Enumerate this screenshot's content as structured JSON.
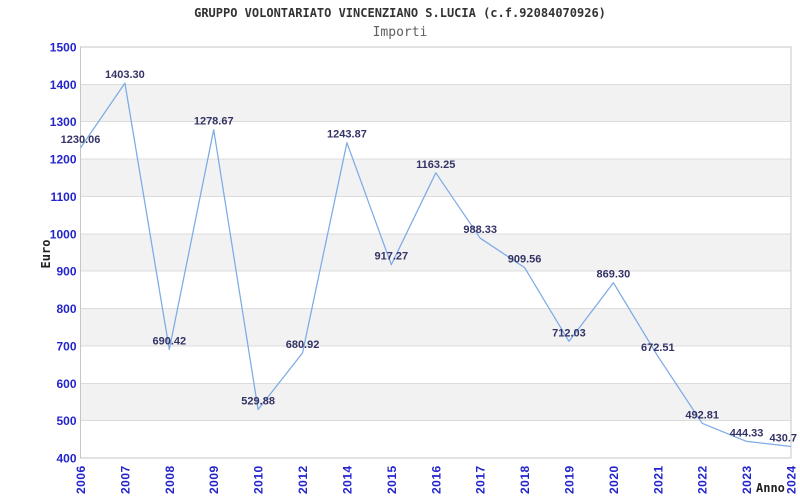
{
  "header": {
    "title": "GRUPPO VOLONTARIATO VINCENZIANO S.LUCIA (c.f.92084070926)",
    "subtitle": "Importi"
  },
  "chart_data": {
    "type": "line",
    "title": "GRUPPO VOLONTARIATO VINCENZIANO S.LUCIA (c.f.92084070926)",
    "subtitle": "Importi",
    "xlabel": "Anno",
    "ylabel": "Euro",
    "categories": [
      "2006",
      "2007",
      "2008",
      "2009",
      "2010",
      "2012",
      "2014",
      "2015",
      "2016",
      "2017",
      "2018",
      "2019",
      "2020",
      "2021",
      "2022",
      "2023",
      "2024"
    ],
    "values": [
      1230.06,
      1403.3,
      690.42,
      1278.67,
      529.88,
      680.92,
      1243.87,
      917.27,
      1163.25,
      988.33,
      909.56,
      712.03,
      869.3,
      672.51,
      492.81,
      444.33,
      430.7
    ],
    "point_labels": [
      "1230.06",
      "1403.30",
      "690.42",
      "1278.67",
      "529.88",
      "680.92",
      "1243.87",
      "917.27",
      "1163.25",
      "988.33",
      "909.56",
      "712.03",
      "869.30",
      "672.51",
      "492.81",
      "444.33",
      "430.7"
    ],
    "ylim": [
      400,
      1500
    ],
    "ytick_step": 100,
    "ytick_labels": [
      "400",
      "500",
      "600",
      "700",
      "800",
      "900",
      "1000",
      "1100",
      "1200",
      "1300",
      "1400",
      "1500"
    ],
    "grid": "horizontal",
    "alternating_bands": true,
    "legend": null,
    "colors": {
      "line": "#7cabe6",
      "tick_label": "#2424cc",
      "data_label": "#333366",
      "band": "#f2f2f2",
      "gridline": "#dcdcdc",
      "border": "#c6c6c6",
      "title": "#333333",
      "subtitle": "#606060",
      "axis_title": "#222222"
    }
  }
}
